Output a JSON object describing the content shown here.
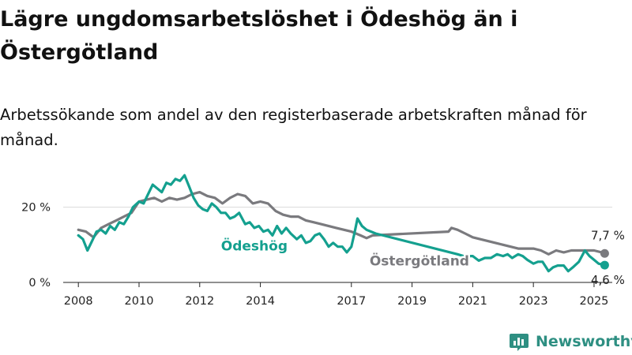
{
  "header": {
    "title": "Lägre ungdomsarbetslöshet i Ödeshög än i Östergötland",
    "subtitle": "Arbetssökande som andel av den registerbaserade arbetskraften månad för månad."
  },
  "brand": {
    "name": "Newsworthy",
    "icon": "newsworthy-bar-chart-icon",
    "color": "#2e8f82"
  },
  "chart_data": {
    "type": "line",
    "x_unit": "year",
    "xlim": [
      2007.5,
      2025.6
    ],
    "ylim": [
      0,
      30
    ],
    "y_ticks": [
      0,
      20
    ],
    "y_tick_labels": [
      "0 %",
      "20 %"
    ],
    "x_ticks": [
      2008,
      2010,
      2012,
      2014,
      2017,
      2019,
      2021,
      2023,
      2025
    ],
    "x_tick_labels": [
      "2008",
      "2010",
      "2012",
      "2014",
      "2017",
      "2019",
      "2021",
      "2023",
      "2025"
    ],
    "grid": true,
    "end_labels": [
      "7,7 %",
      "4,6 %"
    ],
    "series": [
      {
        "name": "Östergötland",
        "color": "#7a7a7e",
        "points": [
          [
            2008.0,
            14.0
          ],
          [
            2008.25,
            13.5
          ],
          [
            2008.5,
            12.0
          ],
          [
            2008.75,
            14.5
          ],
          [
            2009.0,
            15.5
          ],
          [
            2009.25,
            16.5
          ],
          [
            2009.5,
            17.5
          ],
          [
            2009.75,
            18.5
          ],
          [
            2010.0,
            21.5
          ],
          [
            2010.25,
            22.0
          ],
          [
            2010.5,
            22.5
          ],
          [
            2010.75,
            21.5
          ],
          [
            2011.0,
            22.5
          ],
          [
            2011.25,
            22.0
          ],
          [
            2011.5,
            22.5
          ],
          [
            2011.75,
            23.5
          ],
          [
            2012.0,
            24.0
          ],
          [
            2012.25,
            23.0
          ],
          [
            2012.5,
            22.5
          ],
          [
            2012.75,
            21.0
          ],
          [
            2013.0,
            22.5
          ],
          [
            2013.25,
            23.5
          ],
          [
            2013.5,
            23.0
          ],
          [
            2013.75,
            21.0
          ],
          [
            2014.0,
            21.5
          ],
          [
            2014.25,
            21.0
          ],
          [
            2014.5,
            19.0
          ],
          [
            2014.75,
            18.0
          ],
          [
            2015.0,
            17.5
          ],
          [
            2015.25,
            17.5
          ],
          [
            2015.5,
            16.5
          ],
          [
            2015.75,
            16.0
          ],
          [
            2016.0,
            15.5
          ],
          [
            2016.5,
            14.5
          ],
          [
            2017.0,
            13.5
          ],
          [
            2017.3,
            12.5
          ],
          [
            2017.5,
            11.8
          ],
          [
            2017.7,
            12.5
          ],
          [
            2020.2,
            13.5
          ],
          [
            2020.3,
            14.5
          ],
          [
            2020.5,
            14.0
          ],
          [
            2020.75,
            13.0
          ],
          [
            2021.0,
            12.0
          ],
          [
            2021.25,
            11.5
          ],
          [
            2021.5,
            11.0
          ],
          [
            2021.75,
            10.5
          ],
          [
            2022.0,
            10.0
          ],
          [
            2022.25,
            9.5
          ],
          [
            2022.5,
            9.0
          ],
          [
            2022.75,
            9.0
          ],
          [
            2023.0,
            9.0
          ],
          [
            2023.25,
            8.5
          ],
          [
            2023.5,
            7.5
          ],
          [
            2023.75,
            8.5
          ],
          [
            2024.0,
            8.0
          ],
          [
            2024.25,
            8.5
          ],
          [
            2024.5,
            8.5
          ],
          [
            2024.75,
            8.5
          ],
          [
            2025.0,
            8.5
          ],
          [
            2025.25,
            8.0
          ],
          [
            2025.35,
            7.7
          ]
        ]
      },
      {
        "name": "Ödeshög",
        "color": "#14a08f",
        "points": [
          [
            2008.0,
            12.5
          ],
          [
            2008.15,
            11.5
          ],
          [
            2008.3,
            8.5
          ],
          [
            2008.45,
            11.0
          ],
          [
            2008.6,
            13.5
          ],
          [
            2008.75,
            14.0
          ],
          [
            2008.9,
            13.0
          ],
          [
            2009.05,
            15.0
          ],
          [
            2009.2,
            14.0
          ],
          [
            2009.35,
            16.0
          ],
          [
            2009.5,
            15.5
          ],
          [
            2009.65,
            17.5
          ],
          [
            2009.8,
            20.0
          ],
          [
            2010.0,
            21.5
          ],
          [
            2010.15,
            21.0
          ],
          [
            2010.3,
            23.5
          ],
          [
            2010.45,
            26.0
          ],
          [
            2010.6,
            25.0
          ],
          [
            2010.75,
            24.0
          ],
          [
            2010.9,
            26.5
          ],
          [
            2011.05,
            26.0
          ],
          [
            2011.2,
            27.5
          ],
          [
            2011.35,
            27.0
          ],
          [
            2011.5,
            28.5
          ],
          [
            2011.65,
            25.5
          ],
          [
            2011.8,
            22.5
          ],
          [
            2011.95,
            20.5
          ],
          [
            2012.1,
            19.5
          ],
          [
            2012.25,
            19.0
          ],
          [
            2012.4,
            21.0
          ],
          [
            2012.55,
            20.0
          ],
          [
            2012.7,
            18.5
          ],
          [
            2012.85,
            18.5
          ],
          [
            2013.0,
            17.0
          ],
          [
            2013.15,
            17.5
          ],
          [
            2013.3,
            18.5
          ],
          [
            2013.5,
            15.5
          ],
          [
            2013.65,
            16.0
          ],
          [
            2013.8,
            14.5
          ],
          [
            2013.95,
            15.0
          ],
          [
            2014.1,
            13.5
          ],
          [
            2014.25,
            14.0
          ],
          [
            2014.4,
            12.5
          ],
          [
            2014.55,
            15.0
          ],
          [
            2014.7,
            13.0
          ],
          [
            2014.85,
            14.5
          ],
          [
            2015.0,
            13.0
          ],
          [
            2015.2,
            11.5
          ],
          [
            2015.35,
            12.5
          ],
          [
            2015.5,
            10.5
          ],
          [
            2015.65,
            11.0
          ],
          [
            2015.8,
            12.5
          ],
          [
            2015.95,
            13.0
          ],
          [
            2016.1,
            11.5
          ],
          [
            2016.25,
            9.5
          ],
          [
            2016.4,
            10.5
          ],
          [
            2016.55,
            9.5
          ],
          [
            2016.7,
            9.5
          ],
          [
            2016.85,
            8.0
          ],
          [
            2017.0,
            9.5
          ],
          [
            2017.1,
            13.0
          ],
          [
            2017.2,
            17.0
          ],
          [
            2017.35,
            15.0
          ],
          [
            2017.5,
            14.0
          ],
          [
            2017.65,
            13.5
          ],
          [
            2017.8,
            13.0
          ],
          [
            2020.5,
            7.5
          ],
          [
            2020.7,
            7.0
          ],
          [
            2021.0,
            7.0
          ],
          [
            2021.2,
            5.8
          ],
          [
            2021.4,
            6.5
          ],
          [
            2021.6,
            6.5
          ],
          [
            2021.8,
            7.5
          ],
          [
            2022.0,
            7.0
          ],
          [
            2022.15,
            7.5
          ],
          [
            2022.3,
            6.5
          ],
          [
            2022.5,
            7.5
          ],
          [
            2022.65,
            7.0
          ],
          [
            2022.8,
            6.0
          ],
          [
            2023.0,
            5.0
          ],
          [
            2023.15,
            5.5
          ],
          [
            2023.3,
            5.5
          ],
          [
            2023.5,
            3.0
          ],
          [
            2023.65,
            4.0
          ],
          [
            2023.8,
            4.5
          ],
          [
            2024.0,
            4.5
          ],
          [
            2024.15,
            3.0
          ],
          [
            2024.3,
            4.0
          ],
          [
            2024.5,
            5.5
          ],
          [
            2024.7,
            8.5
          ],
          [
            2024.85,
            7.0
          ],
          [
            2025.0,
            6.0
          ],
          [
            2025.15,
            5.0
          ],
          [
            2025.35,
            4.6
          ]
        ]
      }
    ]
  }
}
